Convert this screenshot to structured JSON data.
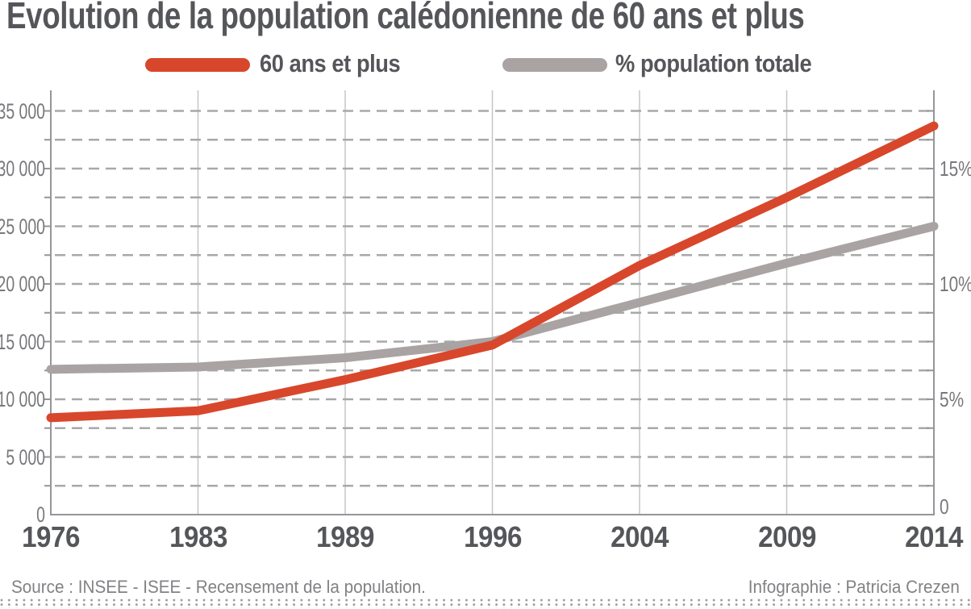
{
  "title": "Evolution de la population calédonienne de 60 ans et plus",
  "legend": [
    {
      "label": "60 ans et plus",
      "color": "#d8472b"
    },
    {
      "label": "% population totale",
      "color": "#a9a3a4"
    }
  ],
  "footer": {
    "source": "Source : INSEE - ISEE - Recensement de la population.",
    "credit": "Infographie : Patricia Crezen"
  },
  "chart_data": {
    "type": "line",
    "title": "Evolution de la population calédonienne de 60 ans et plus",
    "categories": [
      "1976",
      "1983",
      "1989",
      "1996",
      "2004",
      "2009",
      "2014"
    ],
    "series": [
      {
        "name": "60 ans et plus",
        "axis": "left",
        "color": "#d8472b",
        "values": [
          8400,
          9000,
          11700,
          14700,
          21600,
          27500,
          33700
        ]
      },
      {
        "name": "% population totale",
        "axis": "right",
        "color": "#a9a3a4",
        "values_pct": [
          6.3,
          6.4,
          6.8,
          7.5,
          9.2,
          10.9,
          12.5
        ]
      }
    ],
    "left_axis": {
      "tick_labels": [
        "0",
        "5 000",
        "10 000",
        "15 000",
        "20 000",
        "25 000",
        "30 000",
        "35 000"
      ],
      "tick_values": [
        0,
        5000,
        10000,
        15000,
        20000,
        25000,
        30000,
        35000
      ],
      "range": [
        0,
        35000
      ],
      "minor_step": 2500
    },
    "right_axis": {
      "tick_labels": [
        "0",
        "5%",
        "10%",
        "15%"
      ],
      "tick_values_pct": [
        0,
        5,
        10,
        15
      ],
      "pct_to_left_units": 2000,
      "range_pct": [
        0,
        17.5
      ]
    },
    "grid": {
      "horizontal_dashed": true,
      "vertical_solid_per_category": true,
      "legend_position": "top"
    },
    "colors": {
      "axis": "#95959a",
      "vertical_grid": "#c6c6c8",
      "dashed_grid": "#a8a8aa",
      "title_text": "#55565a",
      "tick_text": "#77787b",
      "footer_text": "#818285"
    }
  }
}
